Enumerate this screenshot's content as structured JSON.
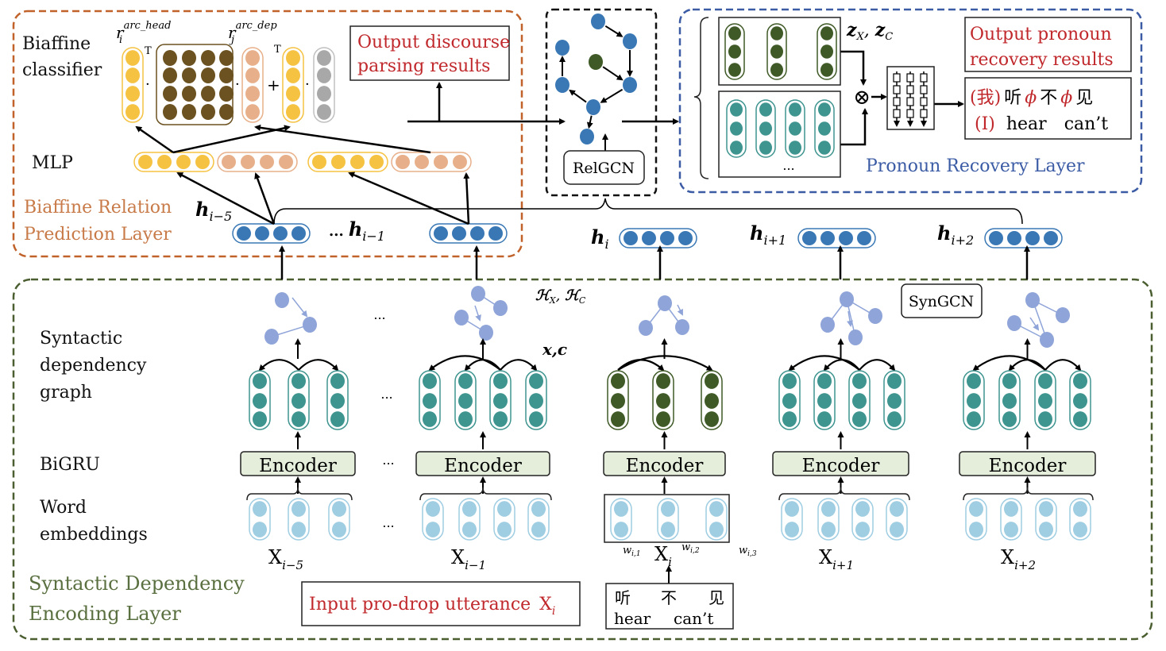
{
  "colors": {
    "biaffine_layer": "#c0622a",
    "pronoun_layer": "#3b5ba5",
    "syntactic_layer": "#4a5e30",
    "output_text": "#c0282c",
    "head_vector": "#f5c242",
    "dep_vector": "#e8b08a",
    "weight_matrix": "#6b5220",
    "bias_vector": "#a8a8a8",
    "hidden_vector": "#3a78b5",
    "current_features": "#3f5a26",
    "context_features": "#3e948f",
    "word_embedding": "#9fcde2",
    "graph_node": "#8fa4d8",
    "encoder_fill": "#e4eedb"
  },
  "biaffine_layer": {
    "classifier_label": [
      "Biaffine",
      "classifier"
    ],
    "r_head": {
      "base": "r",
      "sub": "i",
      "sup": "arc_head"
    },
    "r_dep": {
      "base": "r",
      "sub": "j",
      "sup": "arc_dep"
    },
    "transpose": "T",
    "dot": "·",
    "plus": "+",
    "mlp_label": "MLP",
    "output_box": [
      "Output discourse",
      "parsing results"
    ],
    "title": [
      "Biaffine Relation",
      "Prediction Layer"
    ]
  },
  "hidden_states": [
    {
      "base": "h",
      "sub": "i−5"
    },
    {
      "prefix": "...",
      "base": "h",
      "sub": "i−1"
    },
    {
      "base": "h",
      "sub": "i"
    },
    {
      "base": "h",
      "sub": "i+1"
    },
    {
      "base": "h",
      "sub": "i+2"
    }
  ],
  "relgcn": {
    "label": "RelGCN"
  },
  "pronoun_layer": {
    "z_label": {
      "z1": "z",
      "s1": "X",
      "sep": ", ",
      "z2": "z",
      "s2": "C"
    },
    "ellipsis": "...",
    "product_symbol": "⊗",
    "output_box": [
      "Output pronoun",
      "recovery results"
    ],
    "result_zh": {
      "p1": "(我)",
      "w1": "听",
      "p2": "ϕ",
      "w2": "不",
      "p3": "ϕ",
      "w3": "见"
    },
    "result_en": {
      "p": "(I)",
      "w1": "hear",
      "w2": "can’t"
    },
    "title": "Pronoun Recovery Layer"
  },
  "syntactic_layer": {
    "row_labels": {
      "graph": [
        "Syntactic",
        "dependency",
        "graph"
      ],
      "bigru": "BiGRU",
      "embeddings": [
        "Word",
        "embeddings"
      ]
    },
    "h_label": {
      "a": "ℋ",
      "as": "X",
      "sep": ", ",
      "b": "ℋ",
      "bs": "C"
    },
    "xc_label": "x,c",
    "syngcn": "SynGCN",
    "ellipsis": "...",
    "encoder_label": "Encoder",
    "utterances": [
      {
        "base": "X",
        "sub": "i−5"
      },
      {
        "base": "X",
        "sub": "i−1"
      },
      {
        "base": "X",
        "sub": "i"
      },
      {
        "base": "X",
        "sub": "i+1"
      },
      {
        "base": "X",
        "sub": "i+2"
      }
    ],
    "words": [
      {
        "base": "w",
        "sub": "i,1"
      },
      {
        "base": "w",
        "sub": "i,2"
      },
      {
        "base": "w",
        "sub": "i,3"
      }
    ],
    "input_box": {
      "text": "Input pro-drop utterance ",
      "base": "X",
      "sub": "i"
    },
    "input_words_zh": [
      "听",
      "不",
      "见"
    ],
    "input_words_en": [
      "hear",
      "can’t"
    ],
    "title": [
      "Syntactic Dependency",
      "Encoding Layer"
    ]
  }
}
